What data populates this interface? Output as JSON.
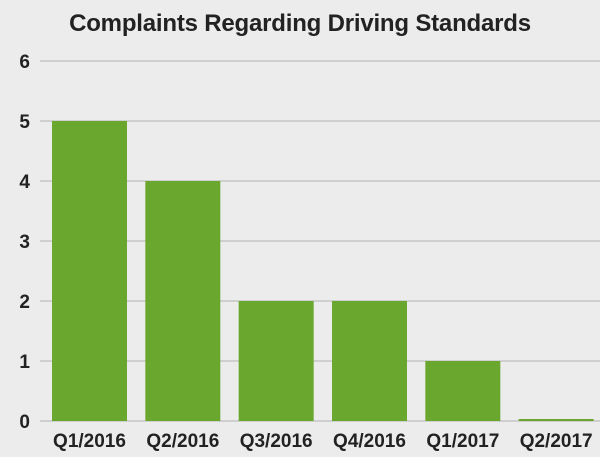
{
  "chart_data": {
    "type": "bar",
    "title": "Complaints Regarding Driving Standards",
    "xlabel": "",
    "ylabel": "",
    "categories": [
      "Q1/2016",
      "Q2/2016",
      "Q3/2016",
      "Q4/2016",
      "Q1/2017",
      "Q2/2017"
    ],
    "values": [
      5,
      4,
      2,
      2,
      1,
      0
    ],
    "ylim": [
      0,
      6
    ],
    "yticks": [
      0,
      1,
      2,
      3,
      4,
      5,
      6
    ],
    "grid": true,
    "legend": "none",
    "colors": {
      "bar": "#6aa72e",
      "grid": "#cfcfcf",
      "background": "#ececec",
      "text": "#222222"
    }
  }
}
